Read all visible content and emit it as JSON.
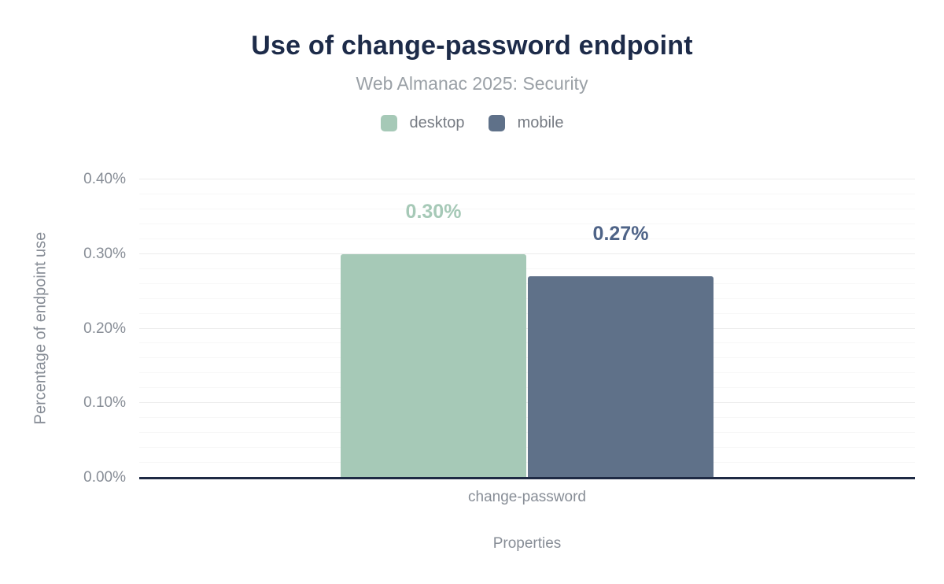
{
  "chart_data": {
    "type": "bar",
    "title": "Use of change-password endpoint",
    "subtitle": "Web Almanac 2025: Security",
    "legend_position": "top",
    "grid": "horizontal-only",
    "x_axis": {
      "title": "Properties",
      "categories": [
        "change-password"
      ]
    },
    "y_axis": {
      "title": "Percentage of endpoint use",
      "unit": "%",
      "max": 0.4,
      "minor_step": 0.02,
      "ticks": [
        {
          "value": 0.0,
          "label": "0.00%"
        },
        {
          "value": 0.1,
          "label": "0.10%"
        },
        {
          "value": 0.2,
          "label": "0.20%"
        },
        {
          "value": 0.3,
          "label": "0.30%"
        },
        {
          "value": 0.4,
          "label": "0.40%"
        }
      ]
    },
    "series": [
      {
        "name": "desktop",
        "values": [
          0.3
        ],
        "data_labels": [
          "0.30%"
        ],
        "color": "#a6c9b7",
        "label_color": "#a6c9b7"
      },
      {
        "name": "mobile",
        "values": [
          0.27
        ],
        "data_labels": [
          "0.27%"
        ],
        "color": "#5f7189",
        "label_color": "#4e6387"
      }
    ],
    "colors": {
      "axis_line": "#1e2a44",
      "title_text": "#1d2b49",
      "muted_text": "#878d96"
    }
  }
}
